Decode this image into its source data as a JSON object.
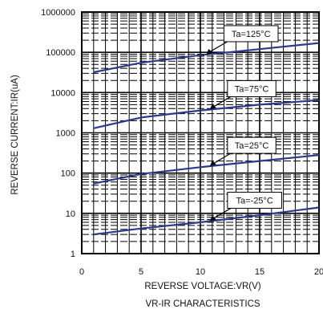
{
  "chart_data": {
    "type": "line",
    "title": "VR-IR CHARACTERISTICS",
    "xlabel": "REVERSE VOLTAGE:VR(V)",
    "ylabel": "REVERSE CURRENT:IR(uA)",
    "xlim": [
      0,
      20
    ],
    "ylim": [
      1,
      1000000
    ],
    "yscale": "log",
    "grid": true,
    "x_ticks": [
      "0",
      "5",
      "10",
      "15",
      "20"
    ],
    "y_ticks": [
      "1",
      "10",
      "100",
      "1000",
      "10000",
      "100000",
      "1000000"
    ],
    "series_color": "#2b3a8f",
    "series": [
      {
        "name": "Ta=125°C",
        "x": [
          1,
          5,
          10,
          15,
          20
        ],
        "values": [
          32000,
          55000,
          85000,
          120000,
          170000
        ]
      },
      {
        "name": "Ta=75°C",
        "x": [
          1,
          5,
          10,
          15,
          20
        ],
        "values": [
          1300,
          2400,
          3600,
          5000,
          6500
        ]
      },
      {
        "name": "Ta=25°C",
        "x": [
          1,
          5,
          10,
          15,
          20
        ],
        "values": [
          55,
          95,
          140,
          200,
          280
        ]
      },
      {
        "name": "Ta=-25°C",
        "x": [
          1,
          5,
          10,
          15,
          20
        ],
        "values": [
          3,
          4.2,
          6,
          9,
          14
        ]
      }
    ],
    "annotations": [
      {
        "text": "Ta=125°C",
        "series": 0,
        "at_x": 10.5
      },
      {
        "text": "Ta=75°C",
        "series": 1,
        "at_x": 10.8
      },
      {
        "text": "Ta=25°C",
        "series": 2,
        "at_x": 10.8
      },
      {
        "text": "Ta=-25°C",
        "series": 3,
        "at_x": 10.8
      }
    ]
  }
}
